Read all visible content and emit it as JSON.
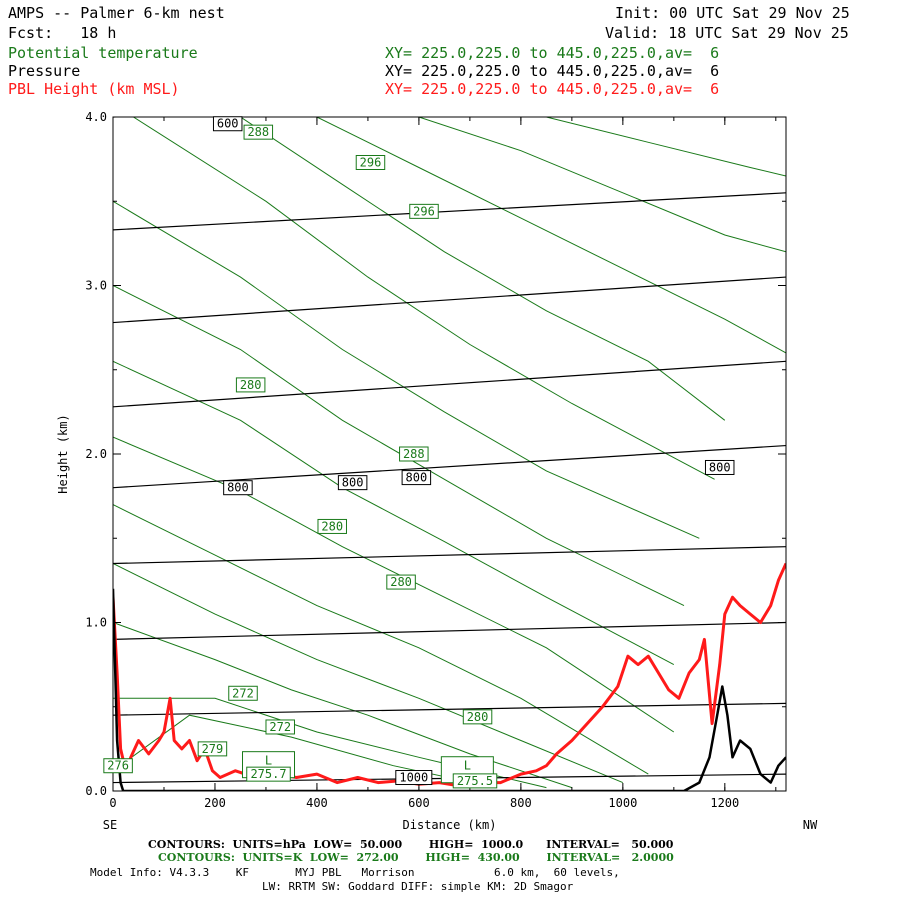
{
  "header": {
    "title": "AMPS -- Palmer 6-km nest",
    "init": "Init: 00 UTC Sat 29 Nov 25",
    "fcst": "Fcst:   18 h",
    "valid": "Valid: 18 UTC Sat 29 Nov 25",
    "fields": [
      {
        "name": "Potential temperature",
        "xy": "XY= 225.0,225.0 to 445.0,225.0,av=  6",
        "color": "#1a7a1a"
      },
      {
        "name": "Pressure",
        "xy": "XY= 225.0,225.0 to 445.0,225.0,av=  6",
        "color": "#000000"
      },
      {
        "name": "PBL Height (km MSL)",
        "xy": "XY= 225.0,225.0 to 445.0,225.0,av=  6",
        "color": "#ff1a1a"
      }
    ]
  },
  "chart_data": {
    "type": "line",
    "xlabel": "Distance (km)",
    "ylabel": "Height (km)",
    "xlim": [
      0,
      1320
    ],
    "ylim": [
      0,
      4.0
    ],
    "x_ticks": [
      "0",
      "200",
      "400",
      "600",
      "800",
      "1000",
      "1200"
    ],
    "y_ticks": [
      "0.0",
      "1.0",
      "2.0",
      "3.0",
      "4.0"
    ],
    "x_start_label": "SE",
    "x_end_label": "NW",
    "pressure_contours": {
      "units": "hPa",
      "color": "#000000",
      "levels": [
        {
          "left": 4.0,
          "right": 4.15
        },
        {
          "left": 3.33,
          "right": 3.55
        },
        {
          "left": 2.78,
          "right": 3.05
        },
        {
          "left": 2.28,
          "right": 2.55
        },
        {
          "left": 1.8,
          "right": 2.05
        },
        {
          "left": 1.35,
          "right": 1.45
        },
        {
          "left": 0.9,
          "right": 1.0
        },
        {
          "left": 0.45,
          "right": 0.52
        },
        {
          "left": 0.05,
          "right": 0.1
        }
      ],
      "labels": [
        {
          "text": "600",
          "x": 225,
          "y": 3.96
        },
        {
          "text": "800",
          "x": 245,
          "y": 1.8
        },
        {
          "text": "800",
          "x": 470,
          "y": 1.83
        },
        {
          "text": "800",
          "x": 595,
          "y": 1.86
        },
        {
          "text": "800",
          "x": 1190,
          "y": 1.92
        },
        {
          "text": "1000",
          "x": 590,
          "y": 0.08
        }
      ]
    },
    "theta_contours": {
      "units": "K",
      "color": "#1a7a1a",
      "lines": [
        {
          "x": [
            0,
            150,
            350,
            550,
            750
          ],
          "y": [
            0.12,
            0.45,
            0.32,
            0.15,
            0.02
          ]
        },
        {
          "x": [
            0,
            200,
            400,
            600,
            850
          ],
          "y": [
            0.55,
            0.55,
            0.35,
            0.2,
            0.02
          ]
        },
        {
          "x": [
            0,
            200,
            350,
            500,
            700,
            900
          ],
          "y": [
            1.0,
            0.78,
            0.6,
            0.45,
            0.22,
            0.02
          ]
        },
        {
          "x": [
            0,
            200,
            400,
            600,
            800,
            1000
          ],
          "y": [
            1.35,
            1.05,
            0.78,
            0.55,
            0.3,
            0.05
          ]
        },
        {
          "x": [
            0,
            200,
            400,
            600,
            800,
            1050
          ],
          "y": [
            1.7,
            1.4,
            1.1,
            0.85,
            0.55,
            0.1
          ]
        },
        {
          "x": [
            0,
            250,
            450,
            650,
            850,
            1100
          ],
          "y": [
            2.1,
            1.78,
            1.45,
            1.15,
            0.85,
            0.35
          ]
        },
        {
          "x": [
            0,
            250,
            450,
            650,
            850,
            1100
          ],
          "y": [
            2.55,
            2.2,
            1.8,
            1.48,
            1.15,
            0.75
          ]
        },
        {
          "x": [
            0,
            250,
            450,
            650,
            850,
            1120
          ],
          "y": [
            3.0,
            2.62,
            2.2,
            1.85,
            1.5,
            1.1
          ]
        },
        {
          "x": [
            0,
            250,
            450,
            650,
            850,
            1150
          ],
          "y": [
            3.5,
            3.05,
            2.62,
            2.25,
            1.9,
            1.5
          ]
        },
        {
          "x": [
            40,
            300,
            500,
            700,
            900,
            1180
          ],
          "y": [
            4.0,
            3.5,
            3.05,
            2.65,
            2.3,
            1.85
          ]
        },
        {
          "x": [
            250,
            450,
            650,
            850,
            1050,
            1200
          ],
          "y": [
            4.0,
            3.6,
            3.2,
            2.85,
            2.55,
            2.2
          ]
        },
        {
          "x": [
            400,
            600,
            800,
            1000,
            1200,
            1320
          ],
          "y": [
            4.0,
            3.7,
            3.4,
            3.1,
            2.8,
            2.6
          ]
        },
        {
          "x": [
            600,
            800,
            1000,
            1200,
            1320
          ],
          "y": [
            4.0,
            3.8,
            3.55,
            3.3,
            3.2
          ]
        },
        {
          "x": [
            850,
            1050,
            1250,
            1320
          ],
          "y": [
            4.0,
            3.85,
            3.7,
            3.65
          ]
        }
      ],
      "labels": [
        {
          "text": "288",
          "x": 285,
          "y": 3.91
        },
        {
          "text": "296",
          "x": 505,
          "y": 3.73
        },
        {
          "text": "296",
          "x": 610,
          "y": 3.44
        },
        {
          "text": "280",
          "x": 270,
          "y": 2.41
        },
        {
          "text": "288",
          "x": 590,
          "y": 2.0
        },
        {
          "text": "280",
          "x": 430,
          "y": 1.57
        },
        {
          "text": "280",
          "x": 565,
          "y": 1.24
        },
        {
          "text": "272",
          "x": 255,
          "y": 0.58
        },
        {
          "text": "272",
          "x": 328,
          "y": 0.38
        },
        {
          "text": "279",
          "x": 195,
          "y": 0.25
        },
        {
          "text": "276",
          "x": 10,
          "y": 0.15
        },
        {
          "text": "L",
          "x": 305,
          "y": 0.18
        },
        {
          "text": "275.7",
          "x": 305,
          "y": 0.1
        },
        {
          "text": "L",
          "x": 695,
          "y": 0.15
        },
        {
          "text": "275.5",
          "x": 710,
          "y": 0.06
        },
        {
          "text": "280",
          "x": 715,
          "y": 0.44
        }
      ]
    },
    "series": [
      {
        "name": "PBL Height (km MSL)",
        "color": "#ff1a1a",
        "x": [
          0,
          8,
          15,
          25,
          35,
          50,
          70,
          90,
          100,
          112,
          120,
          135,
          150,
          165,
          180,
          195,
          210,
          240,
          280,
          320,
          360,
          400,
          440,
          480,
          520,
          560,
          600,
          640,
          680,
          720,
          760,
          800,
          830,
          850,
          870,
          900,
          930,
          960,
          990,
          1010,
          1030,
          1050,
          1070,
          1090,
          1110,
          1130,
          1150,
          1160,
          1175,
          1190,
          1200,
          1215,
          1230,
          1250,
          1270,
          1290,
          1305,
          1320
        ],
        "y": [
          1.15,
          0.7,
          0.25,
          0.12,
          0.2,
          0.3,
          0.22,
          0.3,
          0.35,
          0.55,
          0.3,
          0.25,
          0.3,
          0.18,
          0.25,
          0.12,
          0.08,
          0.12,
          0.08,
          0.1,
          0.08,
          0.1,
          0.05,
          0.08,
          0.05,
          0.06,
          0.04,
          0.05,
          0.03,
          0.05,
          0.05,
          0.1,
          0.12,
          0.15,
          0.22,
          0.3,
          0.4,
          0.5,
          0.62,
          0.8,
          0.75,
          0.8,
          0.7,
          0.6,
          0.55,
          0.7,
          0.78,
          0.9,
          0.4,
          0.75,
          1.05,
          1.15,
          1.1,
          1.05,
          1.0,
          1.1,
          1.25,
          1.35
        ]
      },
      {
        "name": "Terrain",
        "color": "#000000",
        "x": [
          0,
          8,
          15,
          20,
          1120,
          1150,
          1170,
          1185,
          1195,
          1205,
          1215,
          1230,
          1250,
          1270,
          1290,
          1305,
          1320
        ],
        "y": [
          1.2,
          0.3,
          0.05,
          0.0,
          0.0,
          0.05,
          0.2,
          0.45,
          0.62,
          0.45,
          0.2,
          0.3,
          0.25,
          0.1,
          0.05,
          0.15,
          0.2
        ]
      }
    ]
  },
  "footer": {
    "line1": "CONTOURS:  UNITS=hPa  LOW=  50.000       HIGH=  1000.0      INTERVAL=   50.000",
    "line2": "CONTOURS:  UNITS=K  LOW=  272.00       HIGH=  430.00       INTERVAL=   2.0000",
    "line3": "Model Info: V4.3.3    KF       MYJ PBL   Morrison            6.0 km,  60 levels,",
    "line4": "LW: RRTM SW: Goddard DIFF: simple KM: 2D Smagor"
  }
}
